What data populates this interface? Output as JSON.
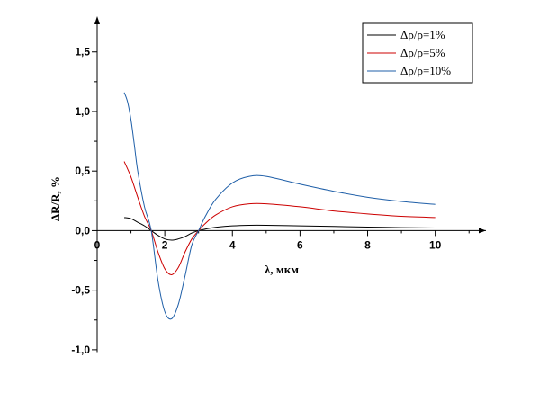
{
  "chart_data": {
    "type": "line",
    "title": "",
    "xlabel": "λ, мкм",
    "ylabel": "ΔR/R, %",
    "xlim": [
      0,
      11.5
    ],
    "ylim": [
      -1.25,
      1.8
    ],
    "x_ticks": [
      0,
      2,
      4,
      6,
      8,
      10
    ],
    "x_tick_labels": [
      "0",
      "2",
      "4",
      "6",
      "8",
      "10"
    ],
    "y_ticks": [
      -1.0,
      -0.5,
      0.0,
      0.5,
      1.0,
      1.5
    ],
    "y_tick_labels": [
      "-1,0",
      "-0,5",
      "0,0",
      "0,5",
      "1,0",
      "1,5"
    ],
    "grid": false,
    "legend_position": "top-right",
    "series": [
      {
        "name": "Δρ/ρ=1%",
        "color": "#000000",
        "x": [
          0.8,
          1.0,
          1.2,
          1.4,
          1.6,
          1.8,
          2.0,
          2.2,
          2.4,
          2.6,
          2.8,
          3.0,
          3.2,
          3.5,
          4.0,
          4.5,
          5.0,
          6.0,
          7.0,
          8.0,
          9.0,
          10.0
        ],
        "y": [
          0.11,
          0.1,
          0.07,
          0.04,
          0.0,
          -0.04,
          -0.07,
          -0.08,
          -0.07,
          -0.05,
          -0.02,
          0.0,
          0.013,
          0.028,
          0.04,
          0.045,
          0.045,
          0.04,
          0.035,
          0.03,
          0.025,
          0.022
        ]
      },
      {
        "name": "Δρ/ρ=5%",
        "color": "#cc0000",
        "x": [
          0.8,
          1.0,
          1.2,
          1.4,
          1.6,
          1.8,
          2.0,
          2.2,
          2.4,
          2.6,
          2.8,
          3.0,
          3.2,
          3.5,
          4.0,
          4.5,
          5.0,
          6.0,
          7.0,
          8.0,
          9.0,
          10.0
        ],
        "y": [
          0.58,
          0.45,
          0.28,
          0.12,
          0.0,
          -0.18,
          -0.32,
          -0.37,
          -0.31,
          -0.18,
          -0.07,
          0.0,
          0.06,
          0.13,
          0.2,
          0.225,
          0.225,
          0.2,
          0.165,
          0.14,
          0.12,
          0.11
        ]
      },
      {
        "name": "Δρ/ρ=10%",
        "color": "#1f5fa8",
        "x": [
          0.8,
          0.9,
          1.0,
          1.1,
          1.2,
          1.4,
          1.6,
          1.8,
          2.0,
          2.2,
          2.4,
          2.6,
          2.8,
          3.0,
          3.2,
          3.5,
          4.0,
          4.5,
          5.0,
          6.0,
          7.0,
          8.0,
          9.0,
          10.0
        ],
        "y": [
          1.16,
          1.08,
          0.93,
          0.72,
          0.5,
          0.2,
          0.0,
          -0.42,
          -0.68,
          -0.74,
          -0.62,
          -0.38,
          -0.12,
          0.0,
          0.12,
          0.26,
          0.4,
          0.455,
          0.455,
          0.39,
          0.33,
          0.28,
          0.245,
          0.22
        ]
      }
    ]
  }
}
